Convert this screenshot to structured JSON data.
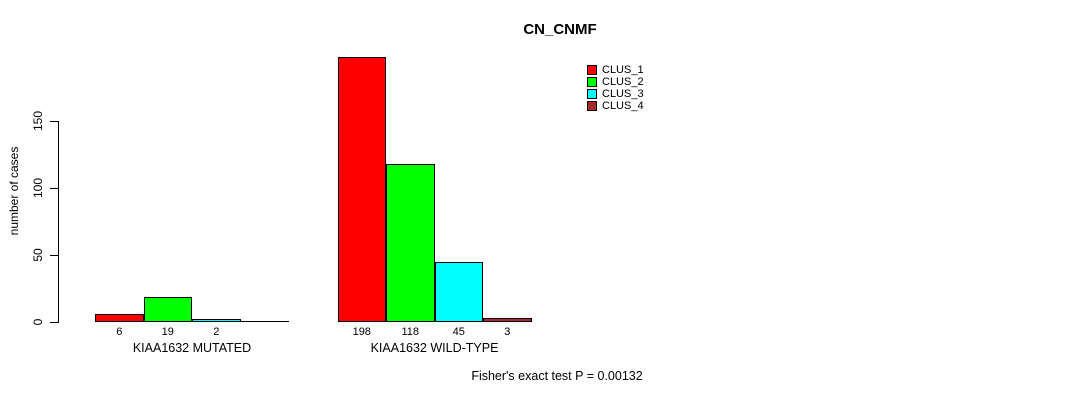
{
  "chart_data": {
    "type": "bar",
    "title": "CN_CNMF",
    "xlabel": "",
    "ylabel": "number of cases",
    "categories": [
      "KIAA1632 MUTATED",
      "KIAA1632 WILD-TYPE"
    ],
    "series": [
      {
        "name": "CLUS_1",
        "color": "#ff0000",
        "values": [
          6,
          198
        ]
      },
      {
        "name": "CLUS_2",
        "color": "#00ff00",
        "values": [
          19,
          118
        ]
      },
      {
        "name": "CLUS_3",
        "color": "#00ffff",
        "values": [
          2,
          45
        ]
      },
      {
        "name": "CLUS_4",
        "color": "#a52a2a",
        "values": [
          0,
          3
        ]
      }
    ],
    "y_ticks": [
      0,
      50,
      100,
      150
    ],
    "ylim": [
      0,
      150
    ],
    "grid": false,
    "legend_position": "top-right",
    "bar_value_labels_shown": true,
    "zero_value_labels_hidden": true,
    "annotation": "Fisher's exact test P = 0.00132"
  }
}
